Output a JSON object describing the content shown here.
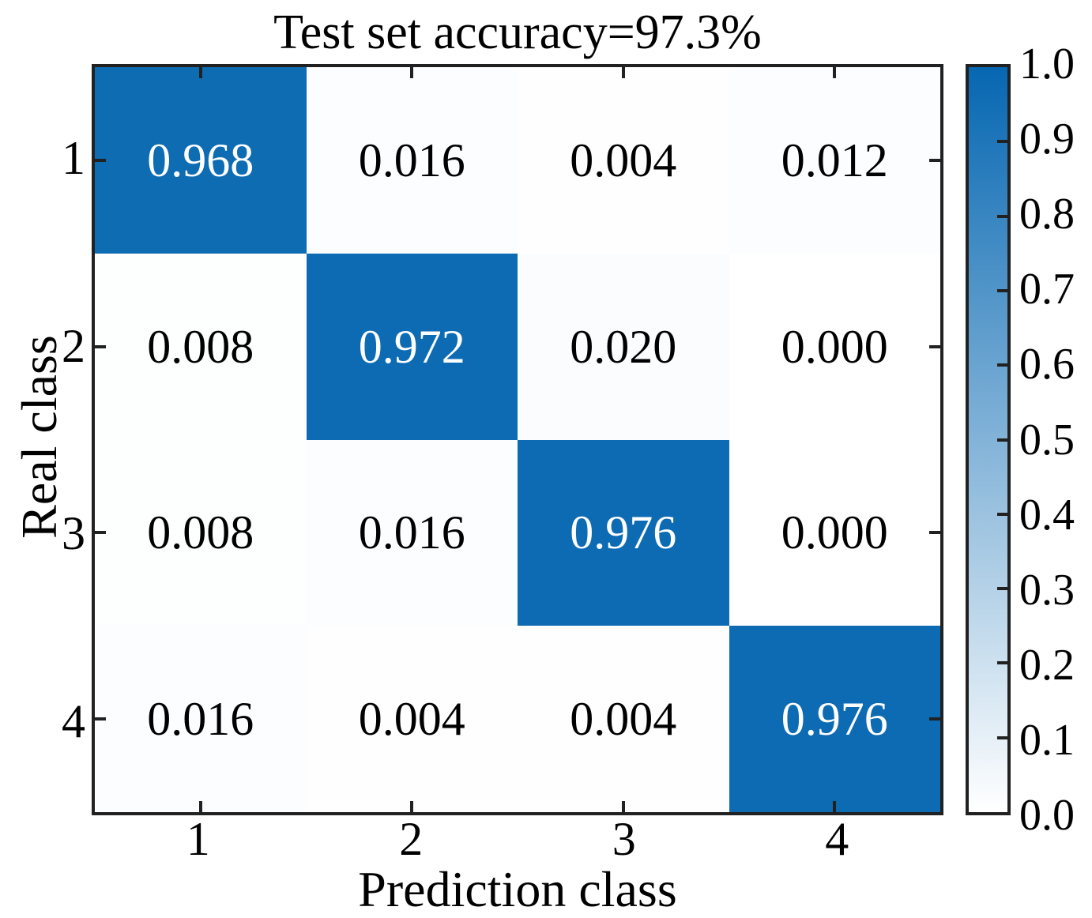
{
  "title": "Test set accuracy=97.3%",
  "chart_data": {
    "type": "heatmap",
    "title": "Test set accuracy=97.3%",
    "xlabel": "Prediction class",
    "ylabel": "Real class",
    "x_tick_labels": [
      "1",
      "2",
      "3",
      "4"
    ],
    "y_tick_labels": [
      "1",
      "2",
      "3",
      "4"
    ],
    "matrix": [
      [
        0.968,
        0.016,
        0.004,
        0.012
      ],
      [
        0.008,
        0.972,
        0.02,
        0.0
      ],
      [
        0.008,
        0.016,
        0.976,
        0.0
      ],
      [
        0.016,
        0.004,
        0.004,
        0.976
      ]
    ],
    "cell_labels": [
      [
        "0.968",
        "0.016",
        "0.004",
        "0.012"
      ],
      [
        "0.008",
        "0.972",
        "0.020",
        "0.000"
      ],
      [
        "0.008",
        "0.016",
        "0.976",
        "0.000"
      ],
      [
        "0.016",
        "0.004",
        "0.004",
        "0.976"
      ]
    ],
    "colorbar": {
      "min": 0.0,
      "max": 1.0,
      "tick_labels": [
        "1.0",
        "0.9",
        "0.8",
        "0.7",
        "0.6",
        "0.5",
        "0.4",
        "0.3",
        "0.2",
        "0.1",
        "0.0"
      ],
      "position": "right"
    },
    "colors": {
      "high": "#0667b1",
      "low": "#ffffff",
      "text_on_high": "#ffffff",
      "text_on_low": "#000000",
      "axis": "#212121"
    },
    "grid": false,
    "legend": false
  }
}
